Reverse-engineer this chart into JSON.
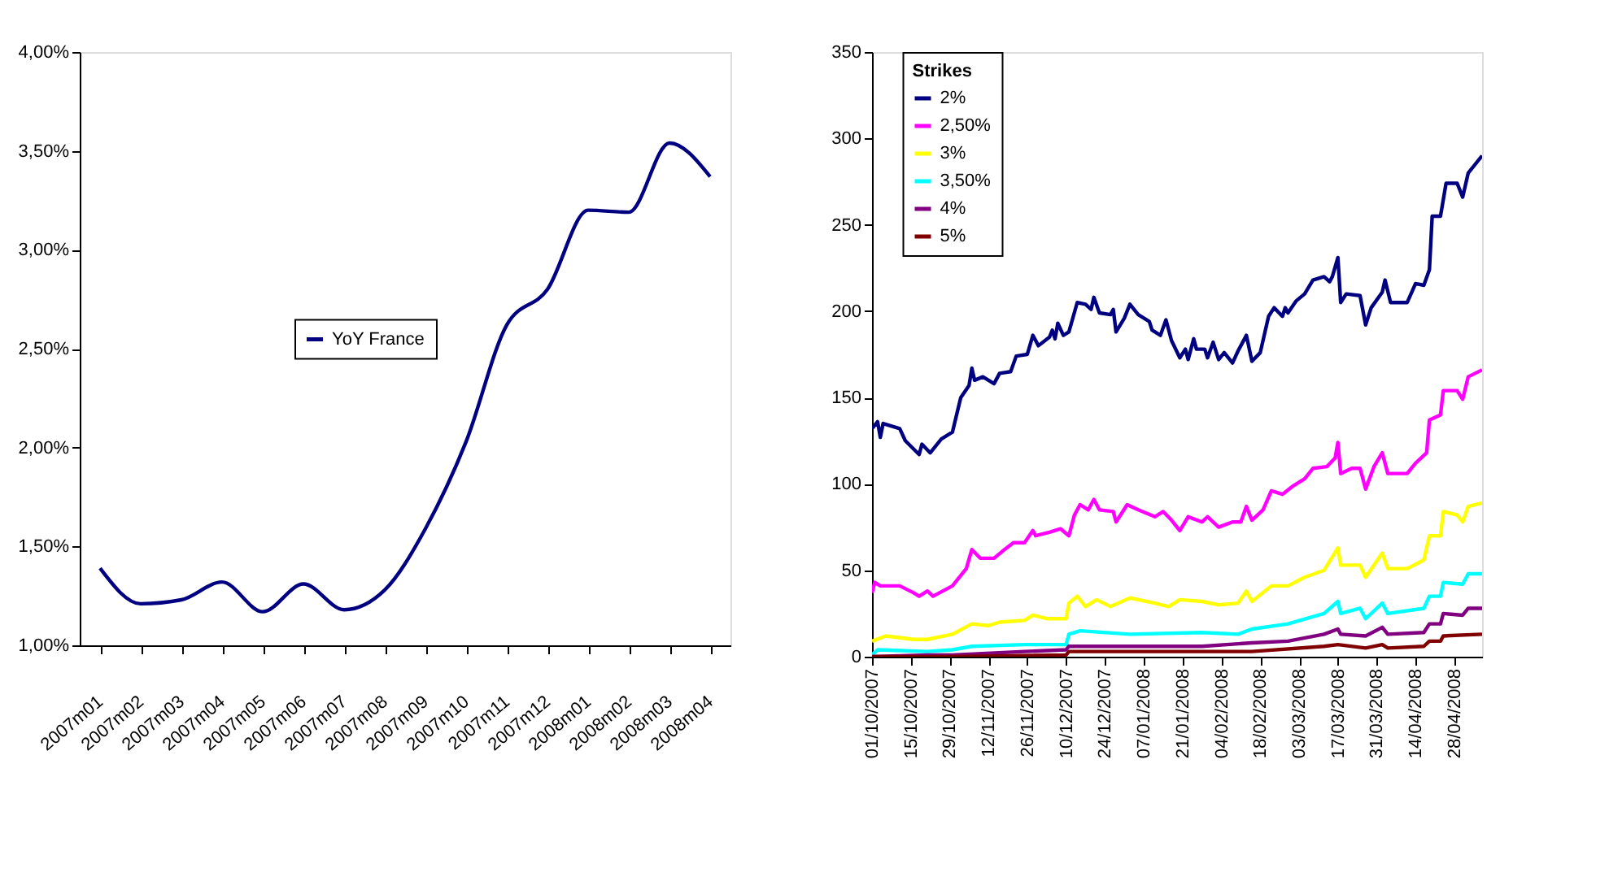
{
  "chart_data": [
    {
      "type": "line",
      "categories": [
        "2007m01",
        "2007m02",
        "2007m03",
        "2007m04",
        "2007m05",
        "2007m06",
        "2007m07",
        "2007m08",
        "2007m09",
        "2007m10",
        "2007m11",
        "2007m12",
        "2008m01",
        "2008m02",
        "2008m03",
        "2008m04"
      ],
      "series": [
        {
          "name": "YoY France",
          "color": "#000080",
          "values": [
            1.39,
            1.21,
            1.23,
            1.32,
            1.17,
            1.31,
            1.18,
            1.28,
            1.59,
            2.03,
            2.62,
            2.8,
            3.2,
            3.19,
            3.54,
            3.37
          ]
        }
      ],
      "ylim": [
        1,
        4
      ],
      "yticks": [
        {
          "value": 1,
          "label": "1,00%"
        },
        {
          "value": 1.5,
          "label": "1,50%"
        },
        {
          "value": 2,
          "label": "2,00%"
        },
        {
          "value": 2.5,
          "label": "2,50%"
        },
        {
          "value": 3,
          "label": "3,00%"
        },
        {
          "value": 3.5,
          "label": "3,50%"
        },
        {
          "value": 4,
          "label": "4,00%"
        }
      ],
      "legend": "center",
      "grid": false,
      "marker": "none",
      "line_style": "solid"
    },
    {
      "type": "line",
      "legend_title": "Strikes",
      "series": [
        {
          "name": "2%",
          "color": "#000080",
          "x": [
            "2007-10-01",
            "2007-10-03",
            "2007-10-04",
            "2007-10-05",
            "2007-10-11",
            "2007-10-13",
            "2007-10-18",
            "2007-10-19",
            "2007-10-22",
            "2007-10-26",
            "2007-10-30",
            "2007-11-02",
            "2007-11-05",
            "2007-11-06",
            "2007-11-07",
            "2007-11-10",
            "2007-11-14",
            "2007-11-16",
            "2007-11-20",
            "2007-11-22",
            "2007-11-26",
            "2007-11-28",
            "2007-11-30",
            "2007-12-04",
            "2007-12-05",
            "2007-12-06",
            "2007-12-07",
            "2007-12-09",
            "2007-12-11",
            "2007-12-14",
            "2007-12-17",
            "2007-12-19",
            "2007-12-20",
            "2007-12-22",
            "2007-12-26",
            "2007-12-27",
            "2007-12-28",
            "2007-12-31",
            "2008-01-02",
            "2008-01-05",
            "2008-01-09",
            "2008-01-10",
            "2008-01-13",
            "2008-01-15",
            "2008-01-17",
            "2008-01-20",
            "2008-01-22",
            "2008-01-23",
            "2008-01-25",
            "2008-01-26",
            "2008-01-29",
            "2008-01-30",
            "2008-02-01",
            "2008-02-03",
            "2008-02-05",
            "2008-02-08",
            "2008-02-10",
            "2008-02-13",
            "2008-02-15",
            "2008-02-18",
            "2008-02-21",
            "2008-02-23",
            "2008-02-26",
            "2008-02-27",
            "2008-02-28",
            "2008-03-02",
            "2008-03-05",
            "2008-03-08",
            "2008-03-12",
            "2008-03-14",
            "2008-03-15",
            "2008-03-17",
            "2008-03-18",
            "2008-03-20",
            "2008-03-25",
            "2008-03-27",
            "2008-03-29",
            "2008-04-02",
            "2008-04-03",
            "2008-04-05",
            "2008-04-11",
            "2008-04-14",
            "2008-04-17",
            "2008-04-19",
            "2008-04-20",
            "2008-04-23",
            "2008-04-25",
            "2008-04-29",
            "2008-05-01",
            "2008-05-03",
            "2008-05-08"
          ],
          "values": [
            132,
            136,
            127,
            135,
            132,
            125,
            117,
            123,
            118,
            126,
            130,
            150,
            157,
            167,
            160,
            162,
            158,
            164,
            165,
            174,
            175,
            186,
            180,
            185,
            189,
            184,
            193,
            186,
            188,
            205,
            204,
            201,
            208,
            199,
            198,
            201,
            188,
            196,
            204,
            198,
            194,
            189,
            186,
            195,
            183,
            173,
            178,
            172,
            184,
            178,
            178,
            173,
            182,
            172,
            176,
            170,
            177,
            186,
            171,
            176,
            197,
            202,
            197,
            202,
            199,
            206,
            210,
            218,
            220,
            217,
            220,
            231,
            205,
            210,
            209,
            192,
            202,
            211,
            218,
            205,
            205,
            216,
            215,
            224,
            255,
            255,
            274,
            274,
            266,
            280,
            290
          ]
        },
        {
          "name": "2,50%",
          "color": "#ff00ff",
          "x": [
            "2007-10-01",
            "2007-10-02",
            "2007-10-04",
            "2007-10-11",
            "2007-10-16",
            "2007-10-18",
            "2007-10-21",
            "2007-10-23",
            "2007-10-30",
            "2007-11-04",
            "2007-11-06",
            "2007-11-09",
            "2007-11-14",
            "2007-11-17",
            "2007-11-21",
            "2007-11-25",
            "2007-11-28",
            "2007-11-29",
            "2007-12-04",
            "2007-12-08",
            "2007-12-11",
            "2007-12-13",
            "2007-12-15",
            "2007-12-18",
            "2007-12-20",
            "2007-12-22",
            "2007-12-27",
            "2007-12-28",
            "2008-01-01",
            "2008-01-05",
            "2008-01-11",
            "2008-01-14",
            "2008-01-17",
            "2008-01-20",
            "2008-01-23",
            "2008-01-28",
            "2008-01-30",
            "2008-02-03",
            "2008-02-08",
            "2008-02-11",
            "2008-02-13",
            "2008-02-15",
            "2008-02-19",
            "2008-02-22",
            "2008-02-26",
            "2008-03-01",
            "2008-03-05",
            "2008-03-08",
            "2008-03-13",
            "2008-03-16",
            "2008-03-17",
            "2008-03-18",
            "2008-03-22",
            "2008-03-25",
            "2008-03-27",
            "2008-03-30",
            "2008-04-02",
            "2008-04-04",
            "2008-04-11",
            "2008-04-14",
            "2008-04-18",
            "2008-04-19",
            "2008-04-23",
            "2008-04-24",
            "2008-04-29",
            "2008-05-01",
            "2008-05-03",
            "2008-05-08"
          ],
          "values": [
            37,
            43,
            41,
            41,
            37,
            35,
            38,
            35,
            41,
            51,
            62,
            57,
            57,
            61,
            66,
            66,
            73,
            70,
            72,
            74,
            70,
            82,
            88,
            85,
            91,
            85,
            84,
            78,
            88,
            85,
            81,
            84,
            79,
            73,
            81,
            78,
            81,
            75,
            78,
            78,
            87,
            79,
            85,
            96,
            94,
            99,
            103,
            109,
            110,
            115,
            124,
            106,
            109,
            109,
            97,
            110,
            118,
            106,
            106,
            112,
            118,
            137,
            140,
            154,
            154,
            149,
            162,
            166
          ]
        },
        {
          "name": "3%",
          "color": "#ffff00",
          "x": [
            "2007-10-01",
            "2007-10-06",
            "2007-10-16",
            "2007-10-21",
            "2007-10-30",
            "2007-11-06",
            "2007-11-12",
            "2007-11-16",
            "2007-11-25",
            "2007-11-28",
            "2007-12-03",
            "2007-12-10",
            "2007-12-11",
            "2007-12-14",
            "2007-12-17",
            "2007-12-21",
            "2007-12-26",
            "2008-01-02",
            "2008-01-11",
            "2008-01-16",
            "2008-01-20",
            "2008-01-28",
            "2008-02-03",
            "2008-02-10",
            "2008-02-13",
            "2008-02-15",
            "2008-02-22",
            "2008-02-28",
            "2008-03-05",
            "2008-03-12",
            "2008-03-17",
            "2008-03-18",
            "2008-03-25",
            "2008-03-27",
            "2008-04-02",
            "2008-04-04",
            "2008-04-11",
            "2008-04-17",
            "2008-04-19",
            "2008-04-23",
            "2008-04-24",
            "2008-04-29",
            "2008-05-01",
            "2008-05-03",
            "2008-05-08"
          ],
          "values": [
            9,
            12,
            10,
            10,
            13,
            19,
            18,
            20,
            21,
            24,
            22,
            22,
            31,
            35,
            29,
            33,
            29,
            34,
            31,
            29,
            33,
            32,
            30,
            31,
            38,
            32,
            41,
            41,
            46,
            50,
            63,
            53,
            53,
            46,
            60,
            51,
            51,
            56,
            70,
            70,
            84,
            82,
            78,
            87,
            89
          ]
        },
        {
          "name": "3,50%",
          "color": "#00ffff",
          "x": [
            "2007-10-01",
            "2007-10-03",
            "2007-10-21",
            "2007-10-30",
            "2007-11-06",
            "2007-11-25",
            "2007-12-10",
            "2007-12-11",
            "2007-12-15",
            "2008-01-02",
            "2008-01-28",
            "2008-02-10",
            "2008-02-15",
            "2008-02-28",
            "2008-03-12",
            "2008-03-17",
            "2008-03-18",
            "2008-03-25",
            "2008-03-27",
            "2008-04-02",
            "2008-04-04",
            "2008-04-17",
            "2008-04-19",
            "2008-04-23",
            "2008-04-24",
            "2008-05-01",
            "2008-05-03",
            "2008-05-08"
          ],
          "values": [
            1,
            4,
            3,
            4,
            6,
            7,
            7,
            13,
            15,
            13,
            14,
            13,
            16,
            19,
            25,
            32,
            25,
            28,
            22,
            31,
            25,
            28,
            35,
            35,
            43,
            42,
            48,
            48
          ]
        },
        {
          "name": "4%",
          "color": "#800080",
          "x": [
            "2007-10-01",
            "2007-10-21",
            "2007-10-30",
            "2007-11-25",
            "2007-12-10",
            "2007-12-11",
            "2008-01-02",
            "2008-01-28",
            "2008-02-15",
            "2008-02-28",
            "2008-03-12",
            "2008-03-17",
            "2008-03-18",
            "2008-03-27",
            "2008-04-02",
            "2008-04-04",
            "2008-04-17",
            "2008-04-19",
            "2008-04-23",
            "2008-04-24",
            "2008-05-01",
            "2008-05-03",
            "2008-05-08"
          ],
          "values": [
            0,
            1,
            1,
            3,
            4,
            6,
            6,
            6,
            8,
            9,
            13,
            16,
            13,
            12,
            17,
            13,
            14,
            19,
            19,
            25,
            24,
            28,
            28
          ]
        },
        {
          "name": "5%",
          "color": "#800000",
          "x": [
            "2007-10-01",
            "2007-10-30",
            "2007-12-10",
            "2007-12-11",
            "2008-01-28",
            "2008-02-15",
            "2008-03-12",
            "2008-03-17",
            "2008-03-27",
            "2008-04-02",
            "2008-04-04",
            "2008-04-17",
            "2008-04-19",
            "2008-04-23",
            "2008-04-24",
            "2008-05-08"
          ],
          "values": [
            0,
            0,
            1,
            3,
            3,
            3,
            6,
            7,
            5,
            7,
            5,
            6,
            9,
            9,
            12,
            13
          ]
        }
      ],
      "xlim": [
        "2007-10-01",
        "2008-05-08"
      ],
      "xticks": [
        {
          "value": "2007-10-01",
          "label": "01/10/2007"
        },
        {
          "value": "2007-10-15",
          "label": "15/10/2007"
        },
        {
          "value": "2007-10-29",
          "label": "29/10/2007"
        },
        {
          "value": "2007-11-12",
          "label": "12/11/2007"
        },
        {
          "value": "2007-11-26",
          "label": "26/11/2007"
        },
        {
          "value": "2007-12-10",
          "label": "10/12/2007"
        },
        {
          "value": "2007-12-24",
          "label": "24/12/2007"
        },
        {
          "value": "2008-01-07",
          "label": "07/01/2008"
        },
        {
          "value": "2008-01-21",
          "label": "21/01/2008"
        },
        {
          "value": "2008-02-04",
          "label": "04/02/2008"
        },
        {
          "value": "2008-02-18",
          "label": "18/02/2008"
        },
        {
          "value": "2008-03-03",
          "label": "03/03/2008"
        },
        {
          "value": "2008-03-17",
          "label": "17/03/2008"
        },
        {
          "value": "2008-03-31",
          "label": "31/03/2008"
        },
        {
          "value": "2008-04-14",
          "label": "14/04/2008"
        },
        {
          "value": "2008-04-28",
          "label": "28/04/2008"
        }
      ],
      "ylim": [
        0,
        350
      ],
      "yticks": [
        0,
        50,
        100,
        150,
        200,
        250,
        300,
        350
      ],
      "legend": "top left",
      "grid": false,
      "marker": "none",
      "line_style": "solid"
    }
  ]
}
